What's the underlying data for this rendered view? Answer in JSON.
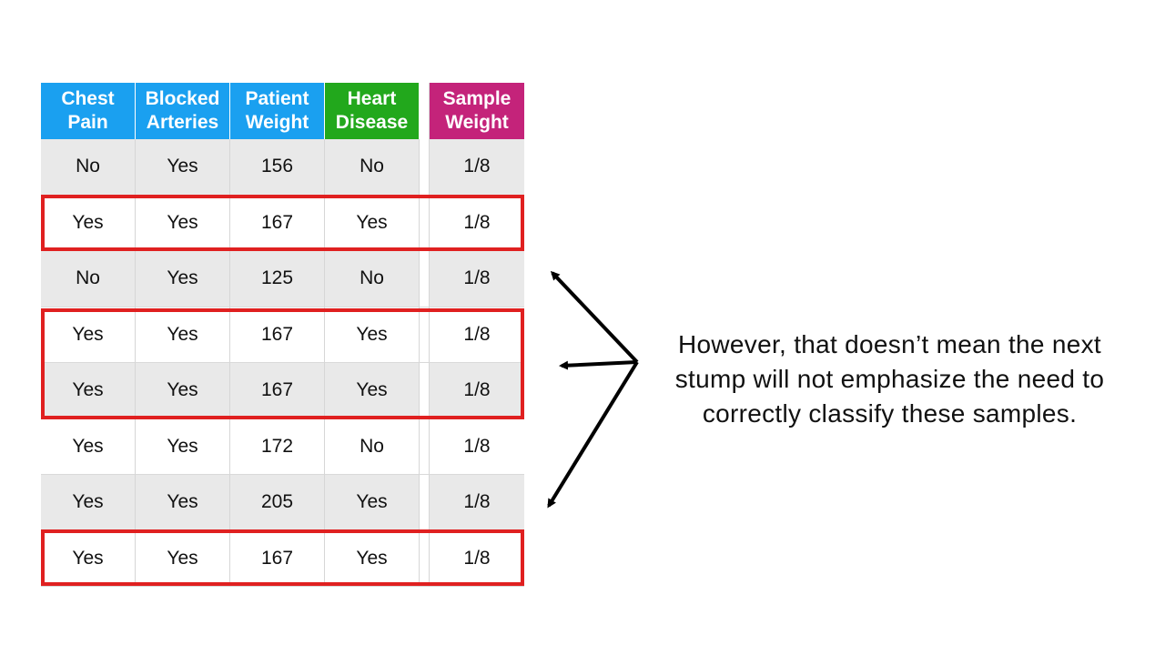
{
  "table": {
    "headers": [
      {
        "line1": "Chest",
        "line2": "Pain",
        "color": "#1aa0f0"
      },
      {
        "line1": "Blocked",
        "line2": "Arteries",
        "color": "#1aa0f0"
      },
      {
        "line1": "Patient",
        "line2": "Weight",
        "color": "#1aa0f0"
      },
      {
        "line1": "Heart",
        "line2": "Disease",
        "color": "#22a81c"
      },
      {
        "line1": "Sample",
        "line2": "Weight",
        "color": "#c4237a"
      }
    ],
    "rows": [
      [
        "No",
        "Yes",
        "156",
        "No",
        "1/8"
      ],
      [
        "Yes",
        "Yes",
        "167",
        "Yes",
        "1/8"
      ],
      [
        "No",
        "Yes",
        "125",
        "No",
        "1/8"
      ],
      [
        "Yes",
        "Yes",
        "167",
        "Yes",
        "1/8"
      ],
      [
        "Yes",
        "Yes",
        "167",
        "Yes",
        "1/8"
      ],
      [
        "Yes",
        "Yes",
        "172",
        "No",
        "1/8"
      ],
      [
        "Yes",
        "Yes",
        "205",
        "Yes",
        "1/8"
      ],
      [
        "Yes",
        "Yes",
        "167",
        "Yes",
        "1/8"
      ]
    ],
    "highlight_color": "#e02020"
  },
  "caption": {
    "line1": "However, that doesn’t mean the next",
    "line2": "stump will not emphasize the need to",
    "line3": "correctly classify these samples."
  }
}
